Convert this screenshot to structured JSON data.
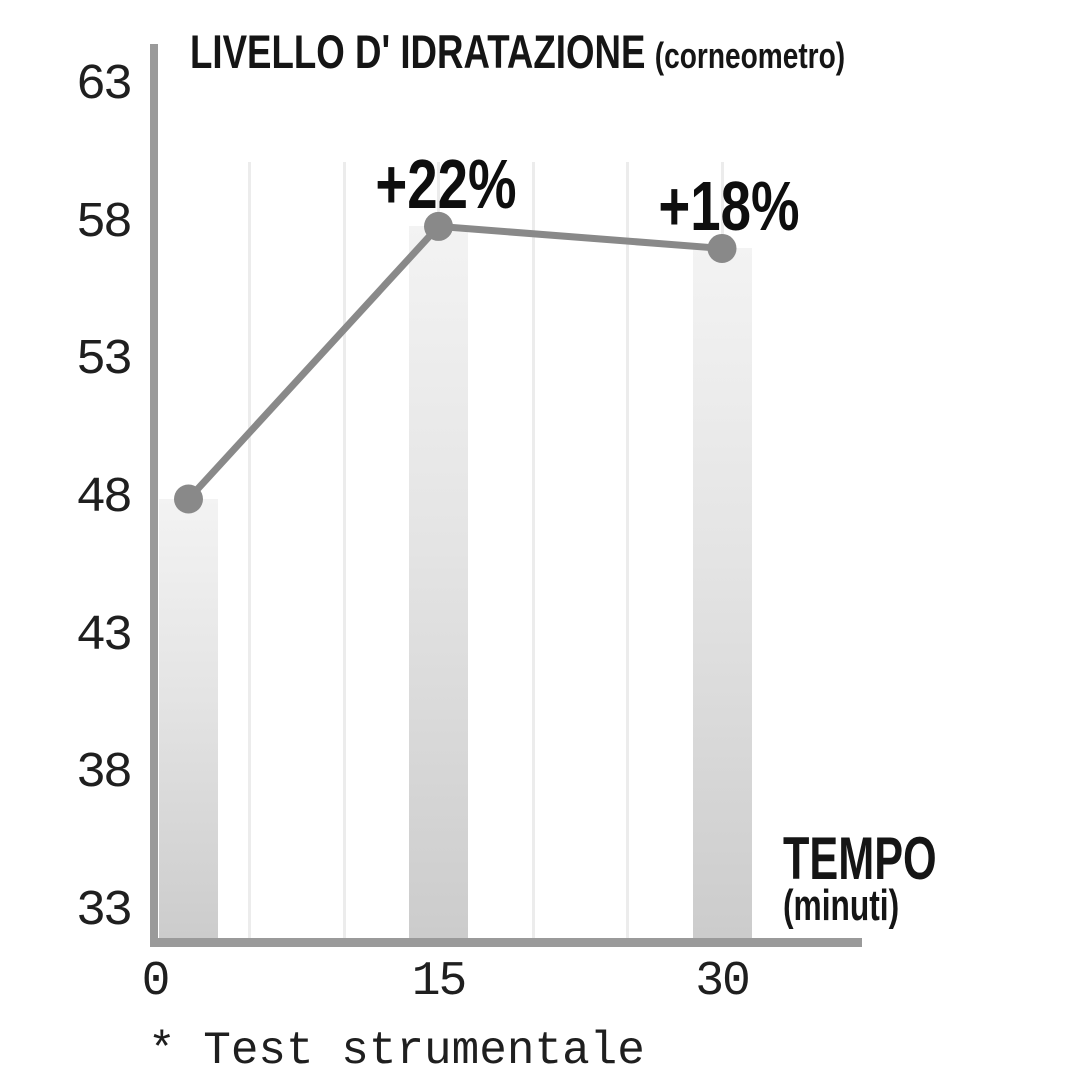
{
  "title": {
    "main": "LIVELLO D' IDRATAZIONE",
    "sub": "(corneometro)"
  },
  "x_axis_label": {
    "main": "TEMPO",
    "sub": "(minuti)"
  },
  "footnote": "* Test strumentale",
  "colors": {
    "background": "#ffffff",
    "axis": "#9a9a9a",
    "line": "#898989",
    "point": "#898989",
    "gridline": "#ececec",
    "bar_top": "#f3f3f3",
    "bar_bottom": "#cccccc",
    "text": "#151515"
  },
  "chart_data": {
    "type": "bar",
    "subtype": "bars with overlaid line and point markers",
    "title": "LIVELLO D' IDRATAZIONE (corneometro)",
    "xlabel": "TEMPO (minuti)",
    "ylabel": "",
    "x": [
      0,
      15,
      30
    ],
    "categories": [
      "0",
      "15",
      "30"
    ],
    "values": [
      48,
      57.9,
      57.1
    ],
    "series": [
      {
        "name": "Livello d'idratazione (corneometro)",
        "values": [
          48,
          57.9,
          57.1
        ]
      }
    ],
    "annotations": [
      {
        "at_minute": 15,
        "text": "+22%"
      },
      {
        "at_minute": 30,
        "text": "+18%"
      }
    ],
    "y_ticks": [
      63,
      58,
      53,
      48,
      43,
      38,
      33
    ],
    "ylim": [
      32,
      64.5
    ],
    "xlim_minutes": [
      0,
      37
    ],
    "grid": "vertical only, every 5 minutes",
    "grid_minutes": [
      5,
      10,
      15,
      20,
      25,
      30
    ],
    "legend": "none"
  }
}
